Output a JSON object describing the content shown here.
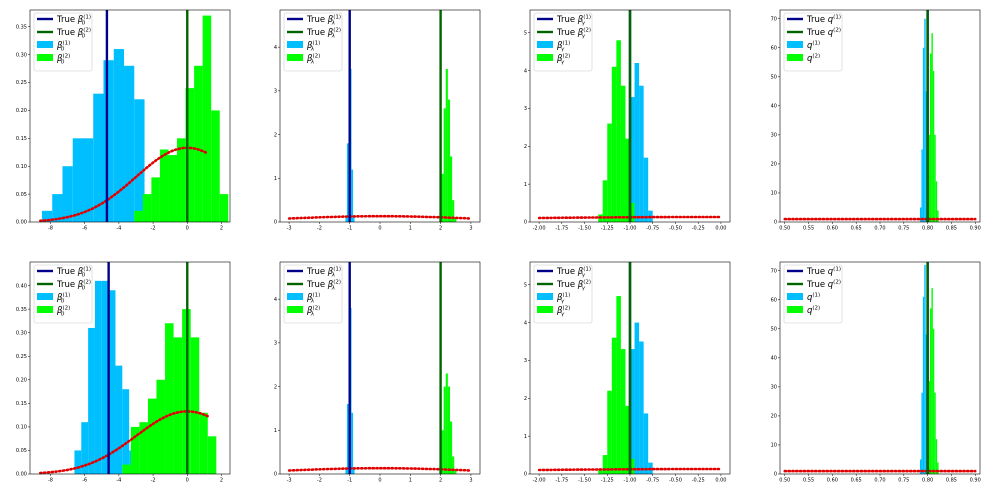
{
  "chart_data": [
    {
      "type": "bar",
      "xlim": [
        -9.2,
        2.5
      ],
      "ylim": [
        0,
        0.38
      ],
      "xticks": [
        -8,
        -6,
        -4,
        -2,
        0,
        2
      ],
      "yticks": [
        0,
        0.05,
        0.1,
        0.15,
        0.2,
        0.25,
        0.3,
        0.35
      ],
      "true_values": [
        -4.7,
        0.0
      ],
      "legend": [
        {
          "text": "True",
          "sym": "β",
          "sub": "0",
          "sup": "(1)",
          "kind": "line",
          "color": "#00008b"
        },
        {
          "text": "True",
          "sym": "β",
          "sub": "0",
          "sup": "(2)",
          "kind": "line",
          "color": "#006400"
        },
        {
          "text": "",
          "sym": "β",
          "sub": "0",
          "sup": "(1)",
          "kind": "patch",
          "color": "#00bfff"
        },
        {
          "text": "",
          "sym": "β",
          "sub": "0",
          "sup": "(2)",
          "kind": "patch",
          "color": "#00ff00"
        }
      ],
      "series": [
        {
          "color": "#00bfff",
          "edges": [
            -8.5,
            -7.9,
            -7.3,
            -6.7,
            -6.1,
            -5.5,
            -4.9,
            -4.3,
            -3.7,
            -3.1,
            -2.5
          ],
          "values": [
            0.02,
            0.05,
            0.1,
            0.15,
            0.15,
            0.23,
            0.29,
            0.31,
            0.28,
            0.22,
            0.08
          ]
        },
        {
          "color": "#00ff00",
          "edges": [
            -3.1,
            -2.6,
            -2.1,
            -1.6,
            -1.1,
            -0.6,
            -0.1,
            0.4,
            0.9,
            1.4,
            1.9,
            2.4
          ],
          "values": [
            0.02,
            0.05,
            0.08,
            0.13,
            0.12,
            0.15,
            0.24,
            0.28,
            0.37,
            0.2,
            0.05
          ]
        }
      ],
      "prior": {
        "mu": 0.0,
        "sigma": 3.0,
        "scale": 0.133,
        "range": [
          -8.6,
          1.2
        ]
      }
    },
    {
      "type": "bar",
      "xlim": [
        -3.3,
        3.3
      ],
      "ylim": [
        0,
        4.85
      ],
      "xticks": [
        -3,
        -2,
        -1,
        0,
        1,
        2,
        3
      ],
      "yticks": [
        0,
        1,
        2,
        3,
        4
      ],
      "true_values": [
        -1.0,
        2.0
      ],
      "legend": [
        {
          "text": "True",
          "sym": "β",
          "sub": "λ",
          "sup": "(1)",
          "kind": "line",
          "color": "#00008b"
        },
        {
          "text": "True",
          "sym": "β",
          "sub": "λ",
          "sup": "(2)",
          "kind": "line",
          "color": "#006400"
        },
        {
          "text": "",
          "sym": "β",
          "sub": "λ",
          "sup": "(1)",
          "kind": "patch",
          "color": "#00bfff"
        },
        {
          "text": "",
          "sym": "β",
          "sub": "λ",
          "sup": "(2)",
          "kind": "patch",
          "color": "#00ff00"
        }
      ],
      "series": [
        {
          "color": "#00bfff",
          "edges": [
            -1.14,
            -1.09,
            -1.04,
            -0.99,
            -0.94,
            -0.89,
            -0.84
          ],
          "values": [
            0.1,
            1.8,
            4.3,
            3.5,
            1.2,
            0.1
          ]
        },
        {
          "color": "#00ff00",
          "edges": [
            1.96,
            2.03,
            2.1,
            2.17,
            2.24,
            2.31,
            2.38,
            2.45,
            2.52
          ],
          "values": [
            0.2,
            1.1,
            2.6,
            3.5,
            2.8,
            1.5,
            0.5,
            0.1
          ]
        }
      ],
      "prior": {
        "mu": 0.0,
        "sigma": 3.0,
        "scale": 0.133,
        "range": [
          -3.0,
          3.0
        ]
      }
    },
    {
      "type": "bar",
      "xlim": [
        -2.1,
        0.1
      ],
      "ylim": [
        0,
        5.6
      ],
      "xticks": [
        -2.0,
        -1.75,
        -1.5,
        -1.25,
        -1.0,
        -0.75,
        -0.5,
        -0.25,
        0.0
      ],
      "ytick_labels_fixed": [
        0,
        1,
        2,
        3,
        4,
        5
      ],
      "yticks": [
        0,
        1,
        2,
        3,
        4,
        5
      ],
      "true_values": [
        -1.0,
        -1.0
      ],
      "legend": [
        {
          "text": "True",
          "sym": "β",
          "sub": "γ",
          "sup": "(1)",
          "kind": "line",
          "color": "#00008b"
        },
        {
          "text": "True",
          "sym": "β",
          "sub": "γ",
          "sup": "(2)",
          "kind": "line",
          "color": "#006400"
        },
        {
          "text": "",
          "sym": "β",
          "sub": "γ",
          "sup": "(1)",
          "kind": "patch",
          "color": "#00bfff"
        },
        {
          "text": "",
          "sym": "β",
          "sub": "γ",
          "sup": "(2)",
          "kind": "patch",
          "color": "#00ff00"
        }
      ],
      "series": [
        {
          "color": "#00bfff",
          "edges": [
            -1.1,
            -1.05,
            -1.0,
            -0.95,
            -0.9,
            -0.85,
            -0.8,
            -0.75
          ],
          "values": [
            0.4,
            1.7,
            3.3,
            4.2,
            3.6,
            1.7,
            0.3
          ]
        },
        {
          "color": "#00ff00",
          "edges": [
            -1.35,
            -1.3,
            -1.25,
            -1.2,
            -1.15,
            -1.1,
            -1.05,
            -1.0,
            -0.95
          ],
          "values": [
            0.2,
            1.1,
            2.6,
            4.1,
            4.8,
            3.6,
            2.2,
            0.5
          ]
        }
      ],
      "prior": {
        "mu": 0.0,
        "sigma": 3.0,
        "scale": 0.133,
        "range": [
          -2.0,
          0.0
        ]
      }
    },
    {
      "type": "bar",
      "xlim": [
        0.49,
        0.91
      ],
      "ylim": [
        0,
        73
      ],
      "xticks": [
        0.5,
        0.55,
        0.6,
        0.65,
        0.7,
        0.75,
        0.8,
        0.85,
        0.9
      ],
      "yticks": [
        0,
        10,
        20,
        30,
        40,
        50,
        60,
        70
      ],
      "true_values": [
        0.8,
        0.8
      ],
      "legend": [
        {
          "text": "True",
          "sym": "q",
          "sub": "",
          "sup": "(1)",
          "kind": "line",
          "color": "#00008b"
        },
        {
          "text": "True",
          "sym": "q",
          "sub": "",
          "sup": "(2)",
          "kind": "line",
          "color": "#006400"
        },
        {
          "text": "",
          "sym": "q",
          "sub": "",
          "sup": "(1)",
          "kind": "patch",
          "color": "#00bfff"
        },
        {
          "text": "",
          "sym": "q",
          "sub": "",
          "sup": "(2)",
          "kind": "patch",
          "color": "#00ff00"
        }
      ],
      "series": [
        {
          "color": "#00bfff",
          "edges": [
            0.784,
            0.787,
            0.79,
            0.793,
            0.796,
            0.799,
            0.802
          ],
          "values": [
            5,
            25,
            60,
            70,
            45,
            12
          ]
        },
        {
          "color": "#00ff00",
          "edges": [
            0.799,
            0.802,
            0.805,
            0.808,
            0.811,
            0.814,
            0.817,
            0.82,
            0.823
          ],
          "values": [
            8,
            30,
            58,
            65,
            52,
            30,
            14,
            4
          ]
        }
      ],
      "prior": {
        "mu": 0.0,
        "sigma": 3.0,
        "scale": 0.133,
        "range": [
          0.5,
          0.9
        ],
        "flat": 1.0
      }
    },
    {
      "type": "bar",
      "xlim": [
        -9.2,
        2.5
      ],
      "ylim": [
        0,
        0.45
      ],
      "xticks": [
        -8,
        -6,
        -4,
        -2,
        0,
        2
      ],
      "yticks": [
        0,
        0.05,
        0.1,
        0.15,
        0.2,
        0.25,
        0.3,
        0.35,
        0.4
      ],
      "true_values": [
        -4.6,
        0.0
      ],
      "legend": [
        {
          "text": "True",
          "sym": "β",
          "sub": "0",
          "sup": "(1)",
          "kind": "line",
          "color": "#00008b"
        },
        {
          "text": "True",
          "sym": "β",
          "sub": "0",
          "sup": "(2)",
          "kind": "line",
          "color": "#006400"
        },
        {
          "text": "",
          "sym": "β",
          "sub": "0",
          "sup": "(1)",
          "kind": "patch",
          "color": "#00bfff"
        },
        {
          "text": "",
          "sym": "β",
          "sub": "0",
          "sup": "(2)",
          "kind": "patch",
          "color": "#00ff00"
        }
      ],
      "series": [
        {
          "color": "#00bfff",
          "edges": [
            -6.6,
            -6.2,
            -5.8,
            -5.4,
            -5.0,
            -4.6,
            -4.2,
            -3.8,
            -3.4,
            -3.0
          ],
          "values": [
            0.05,
            0.11,
            0.31,
            0.41,
            0.41,
            0.39,
            0.23,
            0.18,
            0.05
          ]
        },
        {
          "color": "#00ff00",
          "edges": [
            -3.8,
            -3.3,
            -2.8,
            -2.3,
            -1.8,
            -1.3,
            -0.8,
            -0.3,
            0.2,
            0.7,
            1.2,
            1.7
          ],
          "values": [
            0.02,
            0.1,
            0.11,
            0.16,
            0.2,
            0.32,
            0.29,
            0.35,
            0.29,
            0.13,
            0.08
          ]
        }
      ],
      "prior": {
        "mu": 0.0,
        "sigma": 3.0,
        "scale": 0.133,
        "range": [
          -8.6,
          1.2
        ]
      }
    },
    {
      "type": "bar",
      "xlim": [
        -3.3,
        3.3
      ],
      "ylim": [
        0,
        4.85
      ],
      "xticks": [
        -3,
        -2,
        -1,
        0,
        1,
        2,
        3
      ],
      "yticks": [
        0,
        1,
        2,
        3,
        4
      ],
      "true_values": [
        -1.0,
        2.0
      ],
      "legend": [
        {
          "text": "True",
          "sym": "β",
          "sub": "λ",
          "sup": "(1)",
          "kind": "line",
          "color": "#00008b"
        },
        {
          "text": "True",
          "sym": "β",
          "sub": "λ",
          "sup": "(2)",
          "kind": "line",
          "color": "#006400"
        },
        {
          "text": "",
          "sym": "β",
          "sub": "λ",
          "sup": "(1)",
          "kind": "patch",
          "color": "#00bfff"
        },
        {
          "text": "",
          "sym": "β",
          "sub": "λ",
          "sup": "(2)",
          "kind": "patch",
          "color": "#00ff00"
        }
      ],
      "series": [
        {
          "color": "#00bfff",
          "edges": [
            -1.14,
            -1.09,
            -1.04,
            -0.99,
            -0.94,
            -0.89,
            -0.84
          ],
          "values": [
            0.1,
            1.6,
            4.5,
            3.8,
            1.4,
            0.1
          ]
        },
        {
          "color": "#00ff00",
          "edges": [
            1.96,
            2.03,
            2.1,
            2.17,
            2.24,
            2.31,
            2.38,
            2.45,
            2.52
          ],
          "values": [
            0.2,
            1.0,
            2.0,
            2.3,
            2.0,
            1.2,
            0.4,
            0.1
          ]
        }
      ],
      "prior": {
        "mu": 0.0,
        "sigma": 3.0,
        "scale": 0.133,
        "range": [
          -3.0,
          3.0
        ]
      }
    },
    {
      "type": "bar",
      "xlim": [
        -2.1,
        0.1
      ],
      "ylim": [
        0,
        5.6
      ],
      "xticks": [
        -2.0,
        -1.75,
        -1.5,
        -1.25,
        -1.0,
        -0.75,
        -0.5,
        -0.25,
        0.0
      ],
      "yticks": [
        0,
        1,
        2,
        3,
        4,
        5
      ],
      "true_values": [
        -1.0,
        -1.0
      ],
      "legend": [
        {
          "text": "True",
          "sym": "β",
          "sub": "γ",
          "sup": "(1)",
          "kind": "line",
          "color": "#00008b"
        },
        {
          "text": "True",
          "sym": "β",
          "sub": "γ",
          "sup": "(2)",
          "kind": "line",
          "color": "#006400"
        },
        {
          "text": "",
          "sym": "β",
          "sub": "γ",
          "sup": "(1)",
          "kind": "patch",
          "color": "#00bfff"
        },
        {
          "text": "",
          "sym": "β",
          "sub": "γ",
          "sup": "(2)",
          "kind": "patch",
          "color": "#00ff00"
        }
      ],
      "series": [
        {
          "color": "#00bfff",
          "edges": [
            -1.1,
            -1.05,
            -1.0,
            -0.95,
            -0.9,
            -0.85,
            -0.8,
            -0.75
          ],
          "values": [
            0.3,
            1.4,
            3.3,
            4.0,
            3.5,
            1.6,
            0.3
          ]
        },
        {
          "color": "#00ff00",
          "edges": [
            -1.35,
            -1.3,
            -1.25,
            -1.2,
            -1.15,
            -1.1,
            -1.05,
            -1.0,
            -0.95
          ],
          "values": [
            0.1,
            0.5,
            2.2,
            3.6,
            4.7,
            3.3,
            1.8,
            0.4
          ]
        }
      ],
      "prior": {
        "mu": 0.0,
        "sigma": 3.0,
        "scale": 0.133,
        "range": [
          -2.0,
          0.0
        ]
      }
    },
    {
      "type": "bar",
      "xlim": [
        0.49,
        0.91
      ],
      "ylim": [
        0,
        73
      ],
      "xticks": [
        0.5,
        0.55,
        0.6,
        0.65,
        0.7,
        0.75,
        0.8,
        0.85,
        0.9
      ],
      "yticks": [
        0,
        10,
        20,
        30,
        40,
        50,
        60,
        70
      ],
      "true_values": [
        0.8,
        0.8
      ],
      "legend": [
        {
          "text": "True",
          "sym": "q",
          "sub": "",
          "sup": "(1)",
          "kind": "line",
          "color": "#00008b"
        },
        {
          "text": "True",
          "sym": "q",
          "sub": "",
          "sup": "(2)",
          "kind": "line",
          "color": "#006400"
        },
        {
          "text": "",
          "sym": "q",
          "sub": "",
          "sup": "(1)",
          "kind": "patch",
          "color": "#00bfff"
        },
        {
          "text": "",
          "sym": "q",
          "sub": "",
          "sup": "(2)",
          "kind": "patch",
          "color": "#00ff00"
        }
      ],
      "series": [
        {
          "color": "#00bfff",
          "edges": [
            0.784,
            0.787,
            0.79,
            0.793,
            0.796,
            0.799,
            0.802
          ],
          "values": [
            5,
            28,
            61,
            72,
            48,
            12
          ]
        },
        {
          "color": "#00ff00",
          "edges": [
            0.799,
            0.802,
            0.805,
            0.808,
            0.811,
            0.814,
            0.817,
            0.82,
            0.823
          ],
          "values": [
            8,
            32,
            57,
            64,
            50,
            28,
            12,
            4
          ]
        }
      ],
      "prior": {
        "mu": 0.0,
        "sigma": 3.0,
        "scale": 0.133,
        "range": [
          0.5,
          0.9
        ],
        "flat": 1.0
      }
    }
  ]
}
